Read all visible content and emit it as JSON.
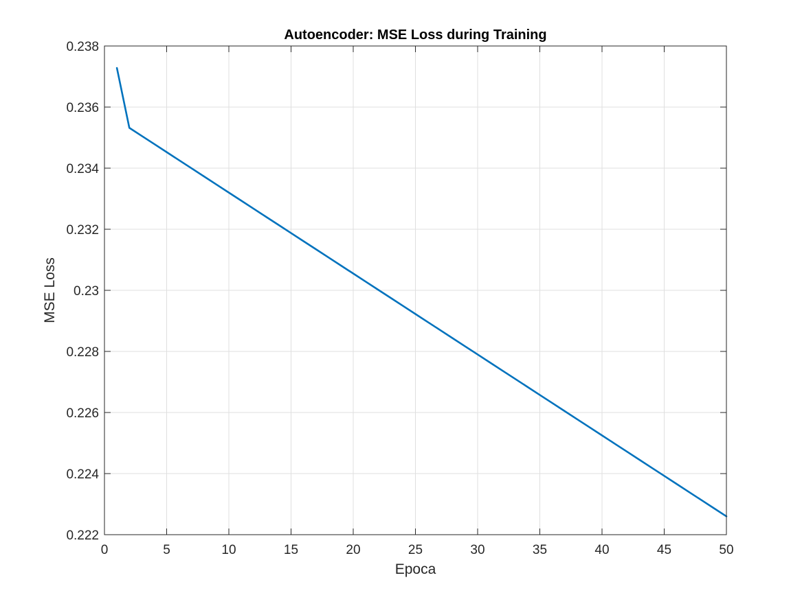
{
  "chart_data": {
    "type": "line",
    "title": "Autoencoder: MSE Loss during Training",
    "xlabel": "Epoca",
    "ylabel": "MSE Loss",
    "xlim": [
      0,
      50
    ],
    "ylim": [
      0.222,
      0.238
    ],
    "x_ticks": [
      "0",
      "5",
      "10",
      "15",
      "20",
      "25",
      "30",
      "35",
      "40",
      "45",
      "50"
    ],
    "y_ticks": [
      "0.222",
      "0.224",
      "0.226",
      "0.228",
      "0.23",
      "0.232",
      "0.234",
      "0.236",
      "0.238"
    ],
    "grid": true,
    "legend": "none",
    "series": [
      {
        "color": "#0072BD",
        "x": [
          1,
          2,
          3,
          4,
          5,
          6,
          7,
          8,
          9,
          10,
          11,
          12,
          13,
          14,
          15,
          16,
          17,
          18,
          19,
          20,
          21,
          22,
          23,
          24,
          25,
          26,
          27,
          28,
          29,
          30,
          31,
          32,
          33,
          34,
          35,
          36,
          37,
          38,
          39,
          40,
          41,
          42,
          43,
          44,
          45,
          46,
          47,
          48,
          49,
          50
        ],
        "y": [
          0.23728,
          0.23532,
          0.235055,
          0.23479,
          0.234525,
          0.23426,
          0.233995,
          0.23373,
          0.233465,
          0.2332,
          0.232935,
          0.23267,
          0.232405,
          0.23214,
          0.231875,
          0.23161,
          0.231345,
          0.23108,
          0.230815,
          0.23055,
          0.230285,
          0.23002,
          0.229755,
          0.22949,
          0.229225,
          0.22896,
          0.228695,
          0.22843,
          0.228165,
          0.2279,
          0.227635,
          0.22737,
          0.227105,
          0.22684,
          0.226575,
          0.22631,
          0.226045,
          0.22578,
          0.225515,
          0.22525,
          0.224985,
          0.22472,
          0.224455,
          0.22419,
          0.223925,
          0.22366,
          0.223395,
          0.22313,
          0.222865,
          0.2226
        ]
      }
    ]
  }
}
